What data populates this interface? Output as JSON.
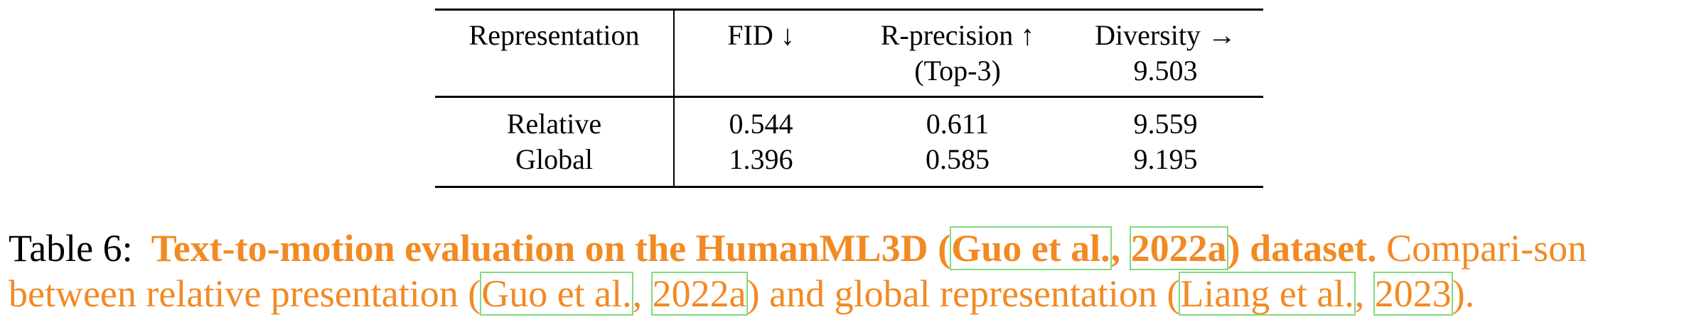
{
  "table": {
    "headers": {
      "representation": "Representation",
      "fid": "FID ↓",
      "rprecision_line1": "R-precision ↑",
      "rprecision_line2": "(Top-3)",
      "diversity_line1": "Diversity →",
      "diversity_line2": "9.503"
    },
    "rows": [
      {
        "representation": "Relative",
        "fid": "0.544",
        "rprecision": "0.611",
        "diversity": "9.559"
      },
      {
        "representation": "Global",
        "fid": "1.396",
        "rprecision": "0.585",
        "diversity": "9.195"
      }
    ]
  },
  "caption": {
    "label": "Table 6:",
    "bold_part1": "Text-to-motion evaluation on the HumanML3D (",
    "bold_cite1": "Guo et al.",
    "bold_sep1": ", ",
    "bold_cite2": "2022a",
    "bold_part2": ") dataset.",
    "text_part1": " Compari-son between relative presentation (",
    "text_cite1": "Guo et al.",
    "text_sep1": ", ",
    "text_cite2": "2022a",
    "text_part2": ") and global representation (",
    "text_cite3": "Liang et al.",
    "text_sep2": ", ",
    "text_cite4": "2023",
    "text_part3": ")."
  },
  "colors": {
    "caption_accent": "#f28a24",
    "citation_box": "#7fdc7f"
  }
}
